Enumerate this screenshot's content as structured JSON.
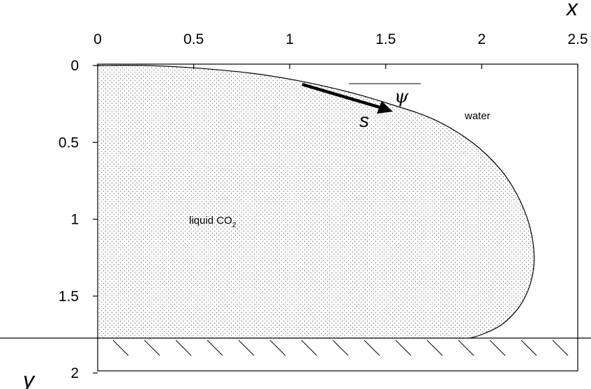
{
  "axes": {
    "x_var": "x",
    "y_var": "y",
    "x_ticks": [
      "0",
      "0.5",
      "1",
      "1.5",
      "2",
      "2.5"
    ],
    "y_ticks": [
      "0",
      "0.5",
      "1",
      "1.5",
      "2"
    ],
    "xlim": [
      0,
      2.5
    ],
    "ylim": [
      0,
      2
    ],
    "y_inverted": true
  },
  "labels": {
    "water": "water",
    "co2_main": "liquid CO",
    "co2_sub": "2",
    "psi": "ψ",
    "s": "s"
  },
  "colors": {
    "stroke": "#000000",
    "dots": "#777777",
    "background": "#ffffff"
  },
  "profile": {
    "description_free": true,
    "points": [
      [
        0.0,
        0.0
      ],
      [
        0.25,
        0.0
      ],
      [
        0.5,
        0.015
      ],
      [
        0.8,
        0.05
      ],
      [
        1.05,
        0.1
      ],
      [
        1.3,
        0.17
      ],
      [
        1.52,
        0.25
      ],
      [
        1.75,
        0.35
      ],
      [
        1.95,
        0.5
      ],
      [
        2.1,
        0.68
      ],
      [
        2.2,
        0.88
      ],
      [
        2.26,
        1.1
      ],
      [
        2.27,
        1.32
      ],
      [
        2.22,
        1.52
      ],
      [
        2.12,
        1.67
      ],
      [
        2.0,
        1.75
      ],
      [
        1.9,
        1.78
      ],
      [
        1.8,
        1.78
      ]
    ],
    "wall_y": 1.78
  }
}
